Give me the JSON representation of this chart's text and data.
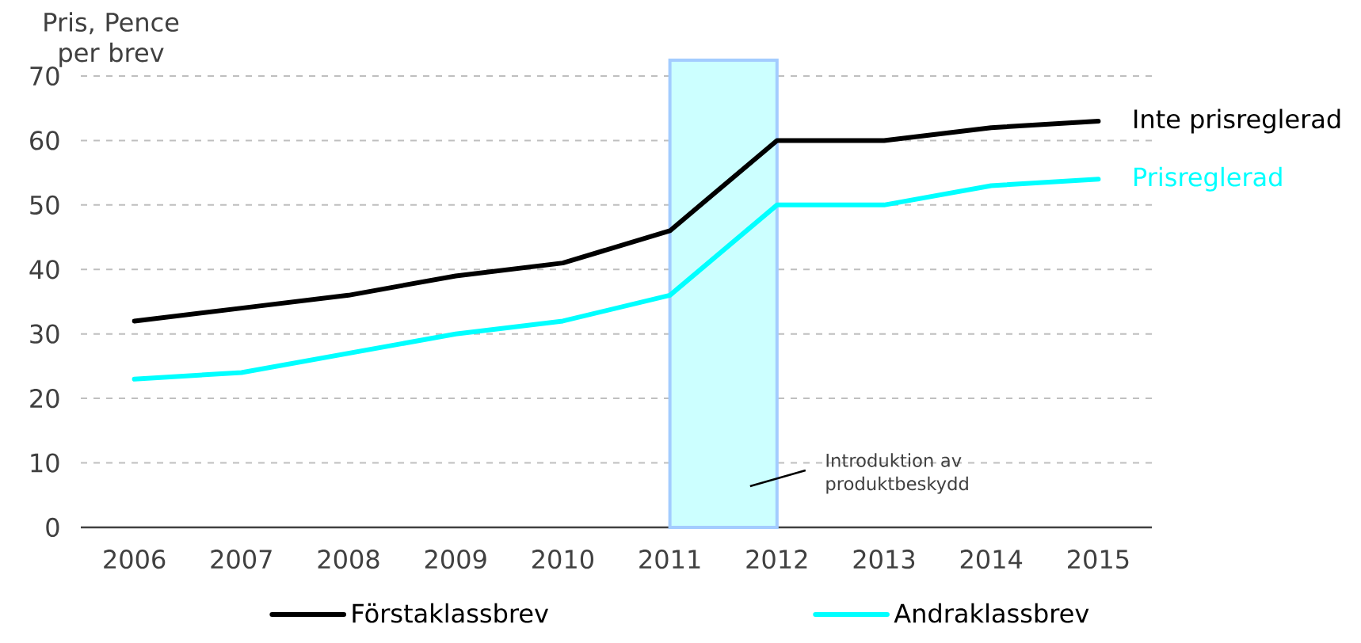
{
  "chart_data": {
    "type": "line",
    "ylabel": "Pris, Pence per brev",
    "categories": [
      "2006",
      "2007",
      "2008",
      "2009",
      "2010",
      "2011",
      "2012",
      "2013",
      "2014",
      "2015"
    ],
    "series": [
      {
        "name": "Förstaklassbrev",
        "color": "#000000",
        "values": [
          32,
          34,
          36,
          39,
          41,
          46,
          60,
          60,
          62,
          63
        ]
      },
      {
        "name": "Andraklassbrev",
        "color": "#00ffff",
        "values": [
          23,
          24,
          27,
          30,
          32,
          36,
          50,
          50,
          53,
          54
        ]
      }
    ],
    "ylim": [
      0,
      70
    ],
    "yticks": [
      0,
      10,
      20,
      30,
      40,
      50,
      60,
      70
    ],
    "grid": "y",
    "legend": "bottom",
    "bands": [
      {
        "axis": "x",
        "from": "2011",
        "to": "2012",
        "label": "Introduktion av produktbeskydd",
        "color": "#ccffff"
      }
    ],
    "annotations": [
      {
        "text": "Inte prisreglerad",
        "x": "2015",
        "y": 63
      },
      {
        "text": "Prisreglerad",
        "x": "2015",
        "y": 54
      }
    ]
  }
}
